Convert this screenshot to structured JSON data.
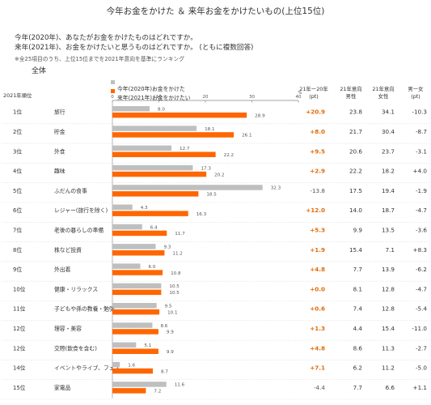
{
  "title": "今年お金をかけた ＆ 来年お金をかけたいもの(上位15位)",
  "questions": [
    "今年(2020年)、あなたがお金をかけたものはどれですか。",
    "来年(2021年)、お金をかけたいと思うものはどれですか。 (ともに複数回答)"
  ],
  "note": "※全25項目のうち、上位15位までを2021年意向を基準にランキング",
  "section": "全体",
  "legend": [
    "今年(2020年)お金をかけた",
    "来年(2021年)お金をかけたい"
  ],
  "columns": {
    "rank": "2021年順位",
    "diff": [
      "21年ー20年",
      "(pt)"
    ],
    "male": [
      "21年意向",
      "男性"
    ],
    "female": [
      "21年意向",
      "女性"
    ],
    "gap": [
      "男ー女",
      "(pt)"
    ]
  },
  "axis_unit": "%",
  "colors": {
    "this_year": "#bfbfbf",
    "next_year": "#ff6600",
    "diff_positive": "#e26b0a",
    "text": "#333333"
  },
  "chart_data": {
    "type": "bar",
    "orientation": "horizontal",
    "xlim": [
      0,
      40
    ],
    "xticks": [
      0,
      10,
      20,
      30,
      40
    ],
    "categories": [
      "旅行",
      "貯金",
      "外食",
      "趣味",
      "ふだんの食事",
      "レジャー(旅行を除く)",
      "老後の暮らしの準備",
      "株など投資",
      "外出着",
      "健康・リラックス",
      "子どもや孫の教養・勉強",
      "理容・美容",
      "交際(飲食を含む)",
      "イベントやライブ、フェス",
      "家電品"
    ],
    "ranks": [
      "1位",
      "2位",
      "3位",
      "4位",
      "5位",
      "6位",
      "7位",
      "8位",
      "9位",
      "10位",
      "11位",
      "12位",
      "12位",
      "14位",
      "15位"
    ],
    "series": [
      {
        "name": "今年(2020年)お金をかけた",
        "values": [
          8.0,
          18.1,
          12.7,
          17.3,
          32.3,
          4.3,
          6.4,
          9.3,
          6.0,
          10.5,
          9.5,
          8.6,
          5.1,
          1.6,
          11.6
        ]
      },
      {
        "name": "来年(2021年)お金をかけたい",
        "values": [
          28.9,
          26.1,
          22.2,
          20.2,
          18.5,
          16.3,
          11.7,
          11.2,
          10.8,
          10.5,
          10.1,
          9.9,
          9.9,
          8.7,
          7.2
        ]
      }
    ],
    "diff_labels": [
      "+20.9",
      "+8.0",
      "+9.5",
      "+2.9",
      "-13.8",
      "+12.0",
      "+5.3",
      "+1.9",
      "+4.8",
      "+0.0",
      "+0.6",
      "+1.3",
      "+4.8",
      "+7.1",
      "-4.4"
    ],
    "male": [
      "23.8",
      "21.7",
      "20.6",
      "22.2",
      "17.5",
      "14.0",
      "9.9",
      "15.4",
      "7.7",
      "8.1",
      "7.4",
      "4.4",
      "8.6",
      "6.2",
      "7.7"
    ],
    "female": [
      "34.1",
      "30.4",
      "23.7",
      "18.2",
      "19.4",
      "18.7",
      "13.5",
      "7.1",
      "13.9",
      "12.8",
      "12.8",
      "15.4",
      "11.3",
      "11.2",
      "6.6"
    ],
    "gap_labels": [
      "-10.3",
      "-8.7",
      "-3.1",
      "+4.0",
      "-1.9",
      "-4.7",
      "-3.6",
      "+8.3",
      "-6.2",
      "-4.7",
      "-5.4",
      "-11.0",
      "-2.7",
      "-5.0",
      "+1.1"
    ]
  }
}
